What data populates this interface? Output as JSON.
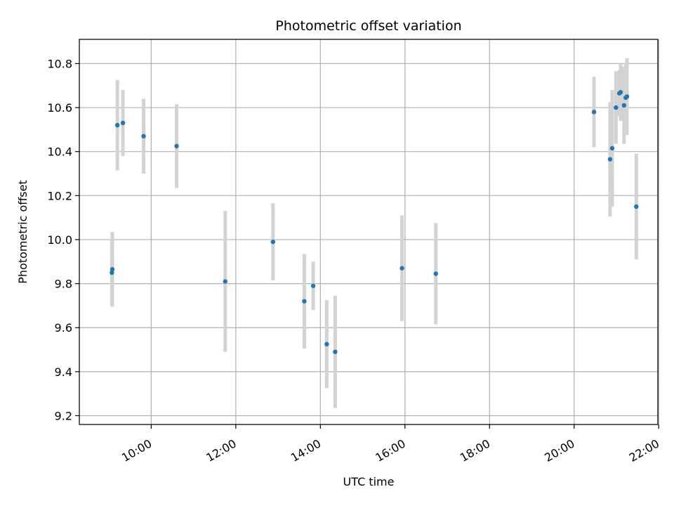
{
  "chart_data": {
    "type": "scatter",
    "title": "Photometric offset variation",
    "xlabel": "UTC time",
    "ylabel": "Photometric offset",
    "x_unit": "hours UTC",
    "xlim": [
      8.3,
      21.98
    ],
    "ylim": [
      9.16,
      10.91
    ],
    "xticks": [
      {
        "value": 10,
        "label": "10:00"
      },
      {
        "value": 12,
        "label": "12:00"
      },
      {
        "value": 14,
        "label": "14:00"
      },
      {
        "value": 16,
        "label": "16:00"
      },
      {
        "value": 18,
        "label": "18:00"
      },
      {
        "value": 20,
        "label": "20:00"
      },
      {
        "value": 22,
        "label": "22:00"
      }
    ],
    "yticks": [
      {
        "value": 9.2,
        "label": "9.2"
      },
      {
        "value": 9.4,
        "label": "9.4"
      },
      {
        "value": 9.6,
        "label": "9.6"
      },
      {
        "value": 9.8,
        "label": "9.8"
      },
      {
        "value": 10.0,
        "label": "10.0"
      },
      {
        "value": 10.2,
        "label": "10.2"
      },
      {
        "value": 10.4,
        "label": "10.4"
      },
      {
        "value": 10.6,
        "label": "10.6"
      },
      {
        "value": 10.8,
        "label": "10.8"
      }
    ],
    "grid": true,
    "marker_color": "#1f77b4",
    "errorbar_color": "#d3d3d3",
    "points": [
      {
        "x": 9.07,
        "y": 9.85,
        "yerr": 0.15
      },
      {
        "x": 9.08,
        "y": 9.865,
        "yerr": 0.17
      },
      {
        "x": 9.2,
        "y": 10.52,
        "yerr": 0.205
      },
      {
        "x": 9.33,
        "y": 10.53,
        "yerr": 0.15
      },
      {
        "x": 9.82,
        "y": 10.47,
        "yerr": 0.17
      },
      {
        "x": 10.6,
        "y": 10.425,
        "yerr": 0.19
      },
      {
        "x": 11.75,
        "y": 9.81,
        "yerr": 0.32
      },
      {
        "x": 12.88,
        "y": 9.99,
        "yerr": 0.175
      },
      {
        "x": 13.62,
        "y": 9.72,
        "yerr": 0.215
      },
      {
        "x": 13.83,
        "y": 9.79,
        "yerr": 0.11
      },
      {
        "x": 14.15,
        "y": 9.525,
        "yerr": 0.2
      },
      {
        "x": 14.35,
        "y": 9.49,
        "yerr": 0.255
      },
      {
        "x": 15.93,
        "y": 9.87,
        "yerr": 0.24
      },
      {
        "x": 16.73,
        "y": 9.845,
        "yerr": 0.23
      },
      {
        "x": 20.47,
        "y": 10.58,
        "yerr": 0.16
      },
      {
        "x": 20.85,
        "y": 10.365,
        "yerr": 0.26
      },
      {
        "x": 20.9,
        "y": 10.415,
        "yerr": 0.265
      },
      {
        "x": 20.99,
        "y": 10.6,
        "yerr": 0.165
      },
      {
        "x": 21.07,
        "y": 10.665,
        "yerr": 0.105
      },
      {
        "x": 21.1,
        "y": 10.67,
        "yerr": 0.13
      },
      {
        "x": 21.18,
        "y": 10.61,
        "yerr": 0.175
      },
      {
        "x": 21.22,
        "y": 10.645,
        "yerr": 0.16
      },
      {
        "x": 21.25,
        "y": 10.65,
        "yerr": 0.175
      },
      {
        "x": 21.47,
        "y": 10.15,
        "yerr": 0.24
      }
    ]
  }
}
